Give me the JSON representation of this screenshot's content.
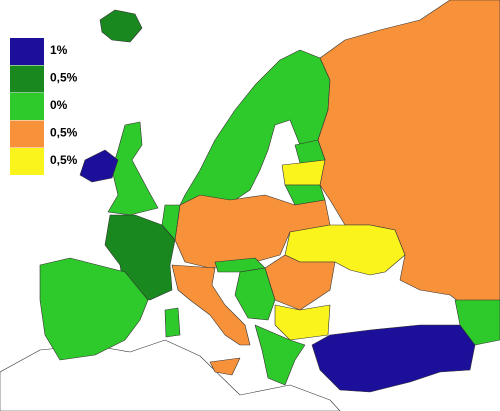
{
  "legend": {
    "items": [
      {
        "label": "1%",
        "color": "#1c0f9a"
      },
      {
        "label": "0,5%",
        "color": "#18881f"
      },
      {
        "label": "0%",
        "color": "#2ec92a"
      },
      {
        "label": "0,5%",
        "color": "#f7923a"
      },
      {
        "label": "0,5%",
        "color": "#fbf31c"
      }
    ]
  }
}
